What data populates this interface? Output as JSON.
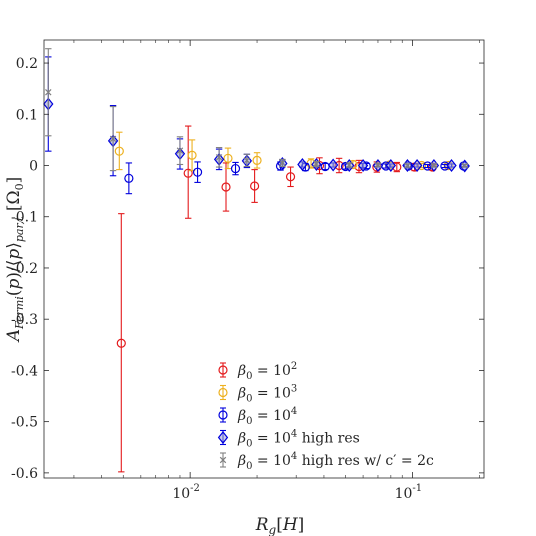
{
  "chart_data": {
    "type": "scatter",
    "xscale": "log",
    "xlim": [
      0.0022,
      0.21
    ],
    "ylim": [
      -0.61,
      0.245
    ],
    "xlabel": "R_g[H]",
    "ylabel": "A_Fermi(p)/⟨p⟩_par,t [Ω_0]",
    "grid": false,
    "legend_position": "bottom-center",
    "x_ticks": [
      {
        "value": 0.01,
        "label": "10",
        "exp": "-2"
      },
      {
        "value": 0.1,
        "label": "10",
        "exp": "-1"
      }
    ],
    "y_ticks": [
      {
        "value": 0.2,
        "label": "0.2"
      },
      {
        "value": 0.1,
        "label": "0.1"
      },
      {
        "value": 0,
        "label": "0"
      },
      {
        "value": -0.1,
        "label": "-0.1"
      },
      {
        "value": -0.2,
        "label": "-0.2"
      },
      {
        "value": -0.3,
        "label": "-0.3"
      },
      {
        "value": -0.4,
        "label": "-0.4"
      },
      {
        "value": -0.5,
        "label": "-0.5"
      },
      {
        "value": -0.6,
        "label": "-0.6"
      }
    ],
    "series": [
      {
        "name": "β0 = 10^2",
        "legend": {
          "prefix": "β",
          "sub": "0",
          "mid": " = 10",
          "sup": "2",
          "suffix": ""
        },
        "color": "#e31a1c",
        "marker": "circle",
        "points": [
          {
            "x": 0.0049,
            "y": -0.347,
            "lo": -0.598,
            "hi": -0.094
          },
          {
            "x": 0.0098,
            "y": -0.015,
            "lo": -0.103,
            "hi": 0.077
          },
          {
            "x": 0.0145,
            "y": -0.042,
            "lo": -0.089,
            "hi": 0.005
          },
          {
            "x": 0.0195,
            "y": -0.04,
            "lo": -0.072,
            "hi": -0.008
          },
          {
            "x": 0.0283,
            "y": -0.022,
            "lo": -0.041,
            "hi": -0.003
          },
          {
            "x": 0.0382,
            "y": 0.0,
            "lo": -0.016,
            "hi": 0.015
          },
          {
            "x": 0.0468,
            "y": 0.0,
            "lo": -0.014,
            "hi": 0.014
          },
          {
            "x": 0.0575,
            "y": -0.002,
            "lo": -0.014,
            "hi": 0.01
          },
          {
            "x": 0.0692,
            "y": -0.003,
            "lo": -0.013,
            "hi": 0.007
          },
          {
            "x": 0.0851,
            "y": -0.003,
            "lo": -0.012,
            "hi": 0.006
          },
          {
            "x": 0.1023,
            "y": -0.003,
            "lo": -0.01,
            "hi": 0.004
          },
          {
            "x": 0.123,
            "y": -0.003,
            "lo": -0.009,
            "hi": 0.003
          }
        ]
      },
      {
        "name": "β0 = 10^3",
        "legend": {
          "prefix": "β",
          "sub": "0",
          "mid": " = 10",
          "sup": "3",
          "suffix": ""
        },
        "color": "#edb120",
        "marker": "circle",
        "points": [
          {
            "x": 0.0048,
            "y": 0.028,
            "lo": -0.008,
            "hi": 0.065
          },
          {
            "x": 0.0102,
            "y": 0.02,
            "lo": -0.01,
            "hi": 0.05
          },
          {
            "x": 0.0148,
            "y": 0.014,
            "lo": -0.006,
            "hi": 0.034
          },
          {
            "x": 0.02,
            "y": 0.01,
            "lo": -0.005,
            "hi": 0.025
          },
          {
            "x": 0.035,
            "y": 0.004,
            "lo": -0.005,
            "hi": 0.013
          },
          {
            "x": 0.054,
            "y": 0.002,
            "lo": -0.005,
            "hi": 0.009
          },
          {
            "x": 0.079,
            "y": 0.001,
            "lo": -0.004,
            "hi": 0.006
          },
          {
            "x": 0.11,
            "y": 0.0,
            "lo": -0.004,
            "hi": 0.004
          },
          {
            "x": 0.145,
            "y": 0.0,
            "lo": -0.003,
            "hi": 0.003
          }
        ]
      },
      {
        "name": "β0 = 10^4",
        "legend": {
          "prefix": "β",
          "sub": "0",
          "mid": " = 10",
          "sup": "4",
          "suffix": ""
        },
        "color": "#0000dd",
        "marker": "circle",
        "points": [
          {
            "x": 0.0053,
            "y": -0.025,
            "lo": -0.055,
            "hi": 0.005
          },
          {
            "x": 0.0108,
            "y": -0.013,
            "lo": -0.033,
            "hi": 0.007
          },
          {
            "x": 0.016,
            "y": -0.006,
            "lo": -0.018,
            "hi": 0.006
          },
          {
            "x": 0.0255,
            "y": -0.001,
            "lo": -0.009,
            "hi": 0.007
          },
          {
            "x": 0.033,
            "y": -0.003,
            "lo": -0.01,
            "hi": 0.004
          },
          {
            "x": 0.0405,
            "y": -0.002,
            "lo": -0.008,
            "hi": 0.004
          },
          {
            "x": 0.05,
            "y": -0.002,
            "lo": -0.007,
            "hi": 0.003
          },
          {
            "x": 0.062,
            "y": -0.001,
            "lo": -0.006,
            "hi": 0.004
          },
          {
            "x": 0.076,
            "y": -0.001,
            "lo": -0.005,
            "hi": 0.003
          },
          {
            "x": 0.096,
            "y": -0.001,
            "lo": -0.005,
            "hi": 0.003
          },
          {
            "x": 0.117,
            "y": -0.001,
            "lo": -0.004,
            "hi": 0.002
          },
          {
            "x": 0.14,
            "y": -0.001,
            "lo": -0.004,
            "hi": 0.002
          },
          {
            "x": 0.17,
            "y": -0.001,
            "lo": -0.003,
            "hi": 0.002
          }
        ]
      },
      {
        "name": "β0 = 10^4 high res",
        "legend": {
          "prefix": "β",
          "sub": "0",
          "mid": " = 10",
          "sup": "4",
          "suffix": " high res"
        },
        "color": "#0000dd",
        "marker": "diamond",
        "points": [
          {
            "x": 0.0023,
            "y": 0.12,
            "lo": 0.028,
            "hi": 0.212
          },
          {
            "x": 0.0045,
            "y": 0.048,
            "lo": -0.02,
            "hi": 0.117
          },
          {
            "x": 0.009,
            "y": 0.023,
            "lo": -0.007,
            "hi": 0.052
          },
          {
            "x": 0.0135,
            "y": 0.012,
            "lo": -0.008,
            "hi": 0.032
          },
          {
            "x": 0.018,
            "y": 0.009,
            "lo": -0.004,
            "hi": 0.022
          },
          {
            "x": 0.026,
            "y": 0.004,
            "lo": -0.003,
            "hi": 0.011
          },
          {
            "x": 0.032,
            "y": 0.002,
            "lo": -0.003,
            "hi": 0.007
          },
          {
            "x": 0.037,
            "y": 0.002,
            "lo": -0.003,
            "hi": 0.007
          },
          {
            "x": 0.044,
            "y": 0.001,
            "lo": -0.003,
            "hi": 0.005
          },
          {
            "x": 0.052,
            "y": 0.0,
            "lo": -0.004,
            "hi": 0.004
          },
          {
            "x": 0.06,
            "y": 0.0,
            "lo": -0.004,
            "hi": 0.004
          },
          {
            "x": 0.07,
            "y": 0.0,
            "lo": -0.003,
            "hi": 0.003
          },
          {
            "x": 0.08,
            "y": 0.0,
            "lo": -0.003,
            "hi": 0.003
          },
          {
            "x": 0.095,
            "y": 0.0,
            "lo": -0.003,
            "hi": 0.003
          },
          {
            "x": 0.105,
            "y": 0.0,
            "lo": -0.003,
            "hi": 0.003
          },
          {
            "x": 0.125,
            "y": 0.0,
            "lo": -0.003,
            "hi": 0.003
          },
          {
            "x": 0.15,
            "y": 0.0,
            "lo": -0.003,
            "hi": 0.003
          },
          {
            "x": 0.172,
            "y": -0.001,
            "lo": -0.003,
            "hi": 0.002
          }
        ]
      },
      {
        "name": "β0 = 10^4 high res w/ c′ = 2c",
        "legend": {
          "prefix": "β",
          "sub": "0",
          "mid": " = 10",
          "sup": "4",
          "suffix": " high res w/ c′ = 2c"
        },
        "color": "#808080",
        "marker": "x",
        "points": [
          {
            "x": 0.0023,
            "y": 0.143,
            "lo": 0.058,
            "hi": 0.228
          },
          {
            "x": 0.0045,
            "y": 0.052,
            "lo": -0.01,
            "hi": 0.115
          },
          {
            "x": 0.009,
            "y": 0.029,
            "lo": 0.002,
            "hi": 0.056
          },
          {
            "x": 0.0135,
            "y": 0.016,
            "lo": -0.003,
            "hi": 0.035
          },
          {
            "x": 0.018,
            "y": 0.01,
            "lo": -0.002,
            "hi": 0.022
          },
          {
            "x": 0.026,
            "y": 0.005,
            "lo": -0.002,
            "hi": 0.012
          },
          {
            "x": 0.037,
            "y": 0.003,
            "lo": -0.002,
            "hi": 0.008
          },
          {
            "x": 0.052,
            "y": 0.001,
            "lo": -0.003,
            "hi": 0.005
          },
          {
            "x": 0.07,
            "y": 0.001,
            "lo": -0.002,
            "hi": 0.004
          },
          {
            "x": 0.095,
            "y": 0.0,
            "lo": -0.003,
            "hi": 0.003
          },
          {
            "x": 0.125,
            "y": 0.0,
            "lo": -0.002,
            "hi": 0.002
          },
          {
            "x": 0.172,
            "y": 0.0,
            "lo": -0.002,
            "hi": 0.002
          }
        ]
      }
    ]
  }
}
